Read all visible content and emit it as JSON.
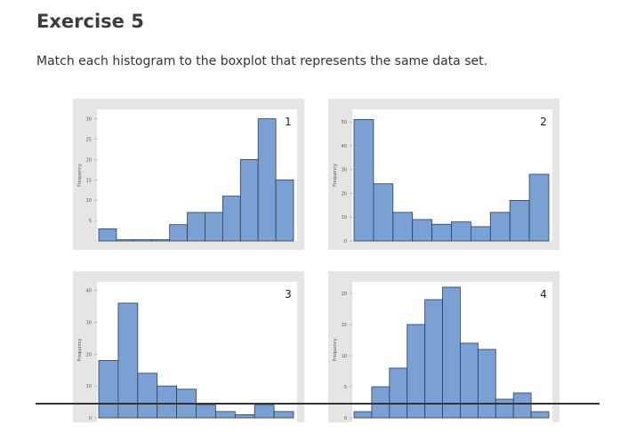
{
  "heading": "Exercise 5",
  "instructions": "Match each histogram to the boxplot that represents the same data set.",
  "colors": {
    "bar_fill": "#7ba0d4",
    "bar_stroke": "#2e3e56",
    "panel_bg": "#e5e5e5",
    "plot_bg": "#ffffff"
  },
  "chart_data": [
    {
      "type": "bar",
      "label": "1",
      "ylabel": "Frequency",
      "yticks": [
        5,
        10,
        15,
        20,
        25,
        30
      ],
      "ylim": [
        0,
        31
      ],
      "values": [
        3,
        0.3,
        0.3,
        0.3,
        4,
        7,
        7,
        11,
        20,
        30,
        15
      ]
    },
    {
      "type": "bar",
      "label": "2",
      "ylabel": "Frequency",
      "yticks": [
        0,
        10,
        20,
        30,
        40,
        50
      ],
      "ylim": [
        0,
        53
      ],
      "values": [
        51,
        24,
        12,
        9,
        7,
        8,
        6,
        12,
        17,
        28
      ]
    },
    {
      "type": "bar",
      "label": "3",
      "ylabel": "Frequency",
      "yticks": [
        0,
        10,
        20,
        30,
        40
      ],
      "ylim": [
        0,
        41
      ],
      "values": [
        18,
        36,
        14,
        10,
        9,
        4,
        2,
        1,
        4,
        2
      ]
    },
    {
      "type": "bar",
      "label": "4",
      "ylabel": "Frequency",
      "yticks": [
        0,
        5,
        10,
        15,
        20
      ],
      "ylim": [
        0,
        21
      ],
      "values": [
        1,
        5,
        8,
        15,
        19,
        21,
        12,
        11,
        3,
        4,
        1
      ]
    }
  ]
}
